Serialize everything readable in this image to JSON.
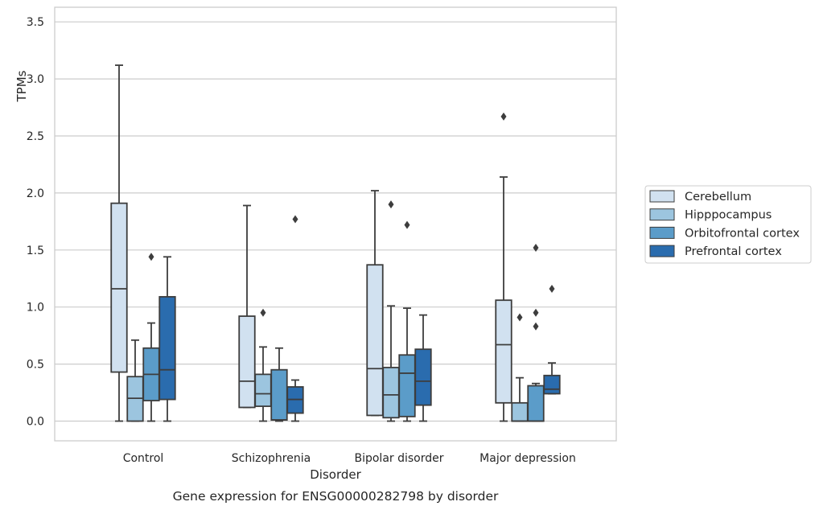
{
  "chart_data": {
    "type": "box",
    "title": "",
    "caption": "Gene expression for ENSG00000282798 by disorder",
    "xlabel": "Disorder",
    "ylabel": "TPMs",
    "ylim": [
      -0.17,
      3.65
    ],
    "yticks": [
      "0.0",
      "0.5",
      "1.0",
      "1.5",
      "2.0",
      "2.5",
      "3.0",
      "3.5"
    ],
    "ytick_values": [
      0,
      0.5,
      1,
      1.5,
      2,
      2.5,
      3,
      3.5
    ],
    "grid": "horizontal",
    "legend_position": "right",
    "categories": [
      "Control",
      "Schizophrenia",
      "Bipolar disorder",
      "Major depression"
    ],
    "series": [
      {
        "name": "Cerebellum",
        "color": "#d1e1f0",
        "boxes": [
          {
            "min": 0.0,
            "q1": 0.43,
            "median": 1.16,
            "q3": 1.91,
            "max": 3.12,
            "outliers": []
          },
          {
            "min": 0.12,
            "q1": 0.12,
            "median": 0.35,
            "q3": 0.92,
            "max": 1.89,
            "outliers": []
          },
          {
            "min": 0.05,
            "q1": 0.05,
            "median": 0.46,
            "q3": 1.37,
            "max": 2.02,
            "outliers": []
          },
          {
            "min": 0.0,
            "q1": 0.16,
            "median": 0.67,
            "q3": 1.06,
            "max": 2.14,
            "outliers": [
              2.67
            ]
          }
        ]
      },
      {
        "name": "Hipppocampus",
        "color": "#9cc5df",
        "boxes": [
          {
            "min": 0.0,
            "q1": 0.0,
            "median": 0.2,
            "q3": 0.39,
            "max": 0.71,
            "outliers": []
          },
          {
            "min": 0.0,
            "q1": 0.13,
            "median": 0.24,
            "q3": 0.41,
            "max": 0.65,
            "outliers": [
              0.95
            ]
          },
          {
            "min": 0.0,
            "q1": 0.03,
            "median": 0.23,
            "q3": 0.47,
            "max": 1.01,
            "outliers": [
              1.9
            ]
          },
          {
            "min": 0.0,
            "q1": 0.0,
            "median": 0.0,
            "q3": 0.16,
            "max": 0.38,
            "outliers": [
              0.91
            ]
          }
        ]
      },
      {
        "name": "Orbitofrontal cortex",
        "color": "#5b9cc9",
        "boxes": [
          {
            "min": 0.0,
            "q1": 0.18,
            "median": 0.41,
            "q3": 0.64,
            "max": 0.86,
            "outliers": [
              1.44
            ]
          },
          {
            "min": 0.0,
            "q1": 0.01,
            "median": 0.01,
            "q3": 0.45,
            "max": 0.64,
            "outliers": []
          },
          {
            "min": 0.0,
            "q1": 0.04,
            "median": 0.42,
            "q3": 0.58,
            "max": 0.99,
            "outliers": [
              1.72
            ]
          },
          {
            "min": 0.0,
            "q1": 0.0,
            "median": 0.0,
            "q3": 0.31,
            "max": 0.33,
            "outliers": [
              0.83,
              0.95,
              1.52
            ]
          }
        ]
      },
      {
        "name": "Prefrontal cortex",
        "color": "#2a6cae",
        "boxes": [
          {
            "min": 0.0,
            "q1": 0.19,
            "median": 0.45,
            "q3": 1.09,
            "max": 1.44,
            "outliers": []
          },
          {
            "min": 0.0,
            "q1": 0.07,
            "median": 0.19,
            "q3": 0.3,
            "max": 0.36,
            "outliers": [
              1.77
            ]
          },
          {
            "min": 0.0,
            "q1": 0.14,
            "median": 0.35,
            "q3": 0.63,
            "max": 0.93,
            "outliers": []
          },
          {
            "min": 0.24,
            "q1": 0.24,
            "median": 0.28,
            "q3": 0.4,
            "max": 0.51,
            "outliers": [
              1.16
            ]
          }
        ]
      }
    ]
  }
}
